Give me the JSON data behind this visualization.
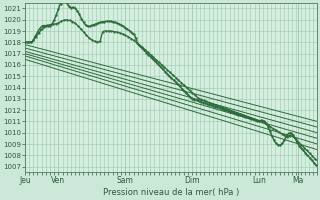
{
  "title": "",
  "xlabel": "Pression niveau de la mer( hPa )",
  "ylabel": "",
  "bg_color": "#cce8d8",
  "plot_bg_color": "#d4eee0",
  "grid_color": "#a0c8b0",
  "line_color": "#2d6b3a",
  "ylim": [
    1006.5,
    1021.5
  ],
  "ytick_min": 1007,
  "ytick_max": 1021,
  "xtick_labels": [
    "Jeu",
    "Ven",
    "Sam",
    "Dim",
    "Lun",
    "Ma"
  ],
  "xtick_positions": [
    0,
    24,
    72,
    120,
    168,
    196
  ],
  "total_hours": 210,
  "x_start": 4
}
